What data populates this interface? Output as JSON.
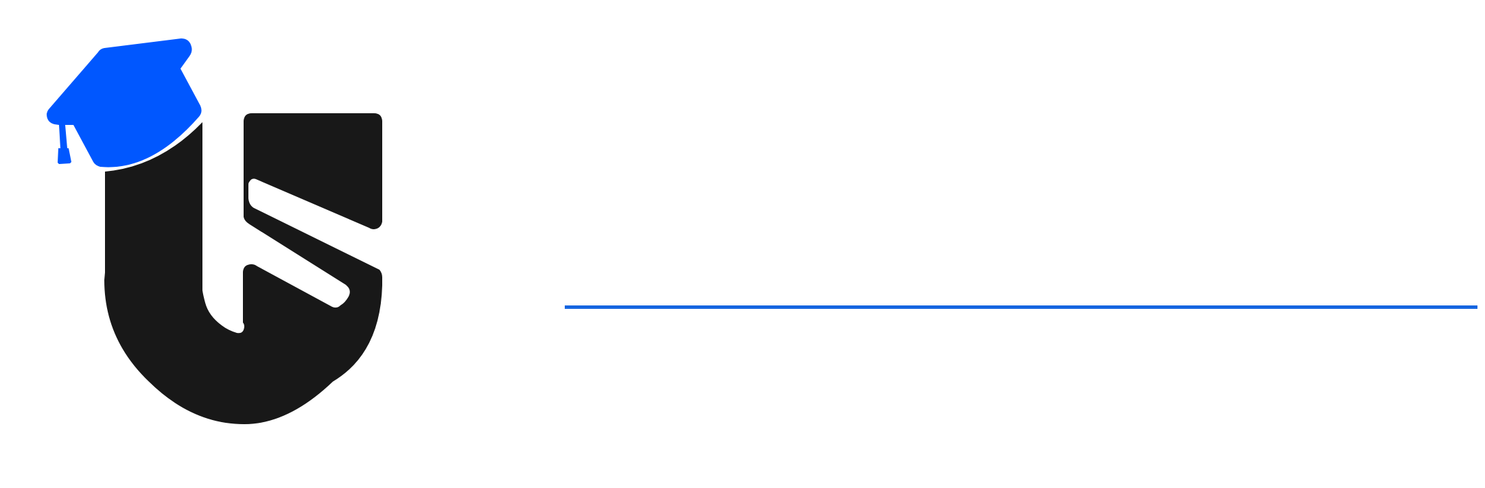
{
  "logo": {
    "icon": "graduation-cap-letter-u-s-logo",
    "colors": {
      "cap": "#0057FF",
      "letters": "#181818"
    }
  },
  "divider": {
    "color": "#1565E0"
  }
}
